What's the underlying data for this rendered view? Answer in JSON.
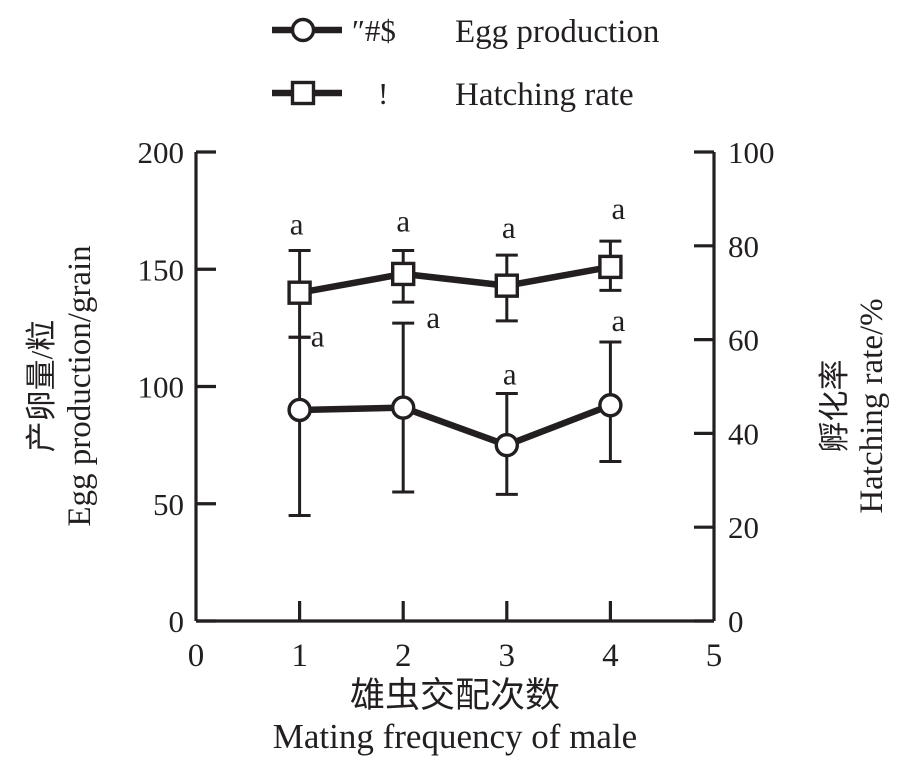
{
  "colors": {
    "ink": "#231f20",
    "paper": "#ffffff"
  },
  "legend": {
    "items": [
      {
        "marker": "circle",
        "garbled_text": "″#$",
        "label": "Egg production"
      },
      {
        "marker": "square",
        "garbled_text": "!",
        "label": "Hatching rate"
      }
    ]
  },
  "chart_data": {
    "type": "line",
    "x": [
      1,
      2,
      3,
      4
    ],
    "xlim": [
      0,
      5
    ],
    "x_ticks": [
      0,
      1,
      2,
      3,
      4,
      5
    ],
    "xlabel_zh": "雄虫交配次数",
    "xlabel_en": "Mating frequency of male",
    "left_axis": {
      "label_zh": "产卵量/粒",
      "label_en": "Egg production/grain",
      "ticks": [
        0,
        50,
        100,
        150,
        200
      ],
      "lim": [
        0,
        200
      ]
    },
    "right_axis": {
      "label_zh": "孵化率",
      "label_en": "Hatching rate/%",
      "ticks": [
        0,
        20,
        40,
        60,
        80,
        100
      ],
      "lim": [
        0,
        100
      ]
    },
    "grid": false,
    "legend_position": "top-center",
    "series": [
      {
        "name": "Egg production",
        "axis": "left",
        "marker": "circle",
        "values": [
          90,
          91,
          75,
          92
        ],
        "err_cap_upper": [
          121,
          127,
          97,
          119
        ],
        "err_cap_lower": [
          45,
          55,
          54,
          68
        ],
        "sig_labels": [
          "a",
          "a",
          "a",
          "a"
        ],
        "sig_dx": [
          18,
          30,
          3,
          8
        ],
        "sig_dy": [
          9,
          5,
          -9,
          -11
        ]
      },
      {
        "name": "Hatching rate",
        "axis": "right",
        "marker": "square",
        "values": [
          70,
          74,
          71.5,
          75.5
        ],
        "err_cap_upper": [
          79,
          79,
          78,
          81
        ],
        "err_cap_lower": [
          60.5,
          68,
          64,
          70.5
        ],
        "sig_labels": [
          "a",
          "a",
          "a",
          "a"
        ],
        "sig_dx": [
          -3,
          0,
          2,
          8
        ],
        "sig_dy": [
          -16,
          -19,
          -17,
          -22
        ]
      }
    ]
  }
}
